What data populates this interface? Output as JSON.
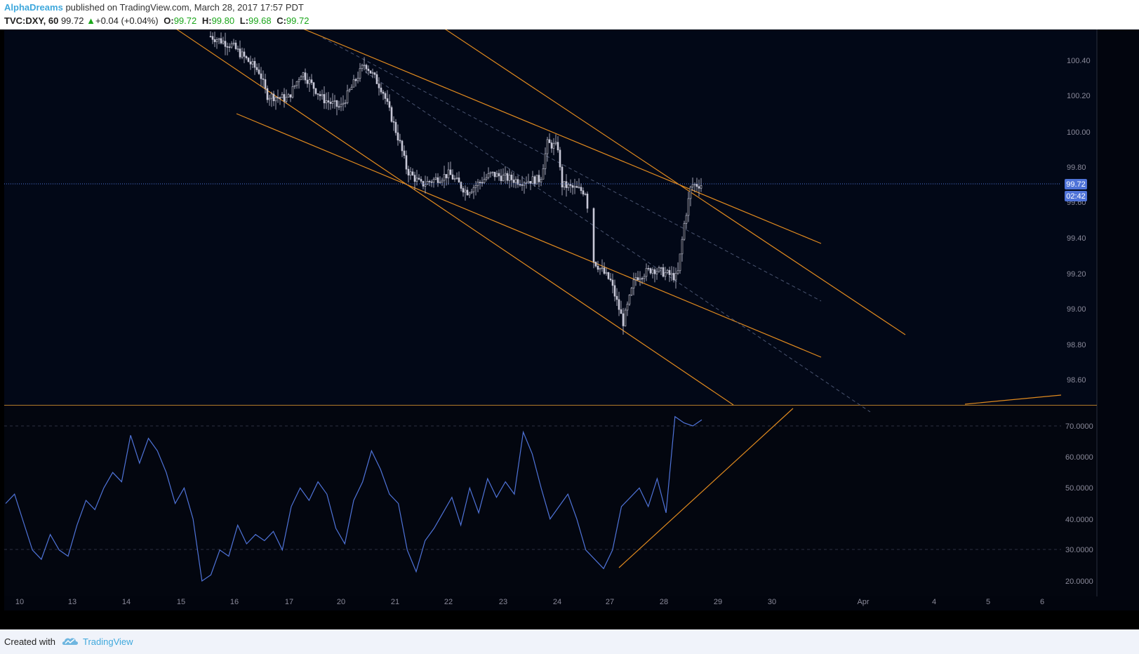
{
  "header": {
    "author": "AlphaDreams",
    "published_text": "published on TradingView.com, March 28, 2017 17:57 PDT",
    "symbol": "TVC:DXY, 60",
    "last_price": "99.72",
    "change": "+0.04 (+0.04%)",
    "open_label": "O:",
    "open": "99.72",
    "high_label": "H:",
    "high": "99.80",
    "low_label": "L:",
    "low": "99.68",
    "close_label": "C:",
    "close": "99.72"
  },
  "price_axis": {
    "labels": [
      "100.40",
      "100.20",
      "100.00",
      "99.80",
      "99.60",
      "99.40",
      "99.20",
      "99.00",
      "98.80",
      "98.60"
    ],
    "current_price": "99.72",
    "countdown": "02:42"
  },
  "rsi_axis": {
    "labels": [
      "70.0000",
      "60.0000",
      "50.0000",
      "40.0000",
      "30.0000",
      "20.0000"
    ]
  },
  "time_axis": {
    "labels": [
      "10",
      "13",
      "14",
      "15",
      "16",
      "17",
      "20",
      "21",
      "22",
      "23",
      "24",
      "27",
      "28",
      "29",
      "30",
      "Apr",
      "4",
      "5",
      "6"
    ]
  },
  "footer": {
    "created_with": "Created with",
    "brand": "TradingView"
  },
  "colors": {
    "background": "#000000",
    "candle": "#c8c8d8",
    "trendline": "#e08a1e",
    "rsi_line": "#4f73d8",
    "price_line": "#4f73d8",
    "axis_text": "#8a8a9a",
    "header_author": "#3fa8dc",
    "header_positive": "#1aa61a"
  },
  "chart_data": [
    {
      "type": "candlestick",
      "title": "TVC:DXY, 60",
      "ylim": [
        98.5,
        100.6
      ],
      "price_series": [
        {
          "date": "Mar 16",
          "price": 100.5
        },
        {
          "date": "Mar 17",
          "price": 100.2
        },
        {
          "date": "Mar 20",
          "price": 100.3
        },
        {
          "date": "Mar 21",
          "price": 99.7
        },
        {
          "date": "Mar 22",
          "price": 99.65
        },
        {
          "date": "Mar 23",
          "price": 99.75
        },
        {
          "date": "Mar 24",
          "price": 99.95
        },
        {
          "date": "Mar 24",
          "price": 99.65
        },
        {
          "date": "Mar 27",
          "price": 99.3
        },
        {
          "date": "Mar 27",
          "price": 98.9
        },
        {
          "date": "Mar 28",
          "price": 99.25
        },
        {
          "date": "Mar 28",
          "price": 99.72
        }
      ],
      "last": 99.72,
      "high_of_session": 99.8,
      "low_of_session": 98.87
    },
    {
      "type": "line",
      "name": "RSI",
      "ylim": [
        17,
        77
      ],
      "y": [
        45,
        48,
        39,
        30,
        27,
        35,
        30,
        28,
        38,
        46,
        43,
        50,
        55,
        52,
        67,
        58,
        66,
        62,
        55,
        45,
        50,
        40,
        20,
        22,
        30,
        28,
        38,
        32,
        35,
        33,
        36,
        30,
        44,
        50,
        46,
        52,
        48,
        37,
        32,
        46,
        52,
        62,
        56,
        48,
        45,
        30,
        23,
        33,
        37,
        42,
        47,
        38,
        50,
        42,
        53,
        47,
        52,
        48,
        68,
        61,
        50,
        40,
        44,
        48,
        40,
        30,
        27,
        24,
        30,
        44,
        47,
        50,
        44,
        53,
        42,
        73,
        71,
        70,
        72
      ]
    }
  ]
}
